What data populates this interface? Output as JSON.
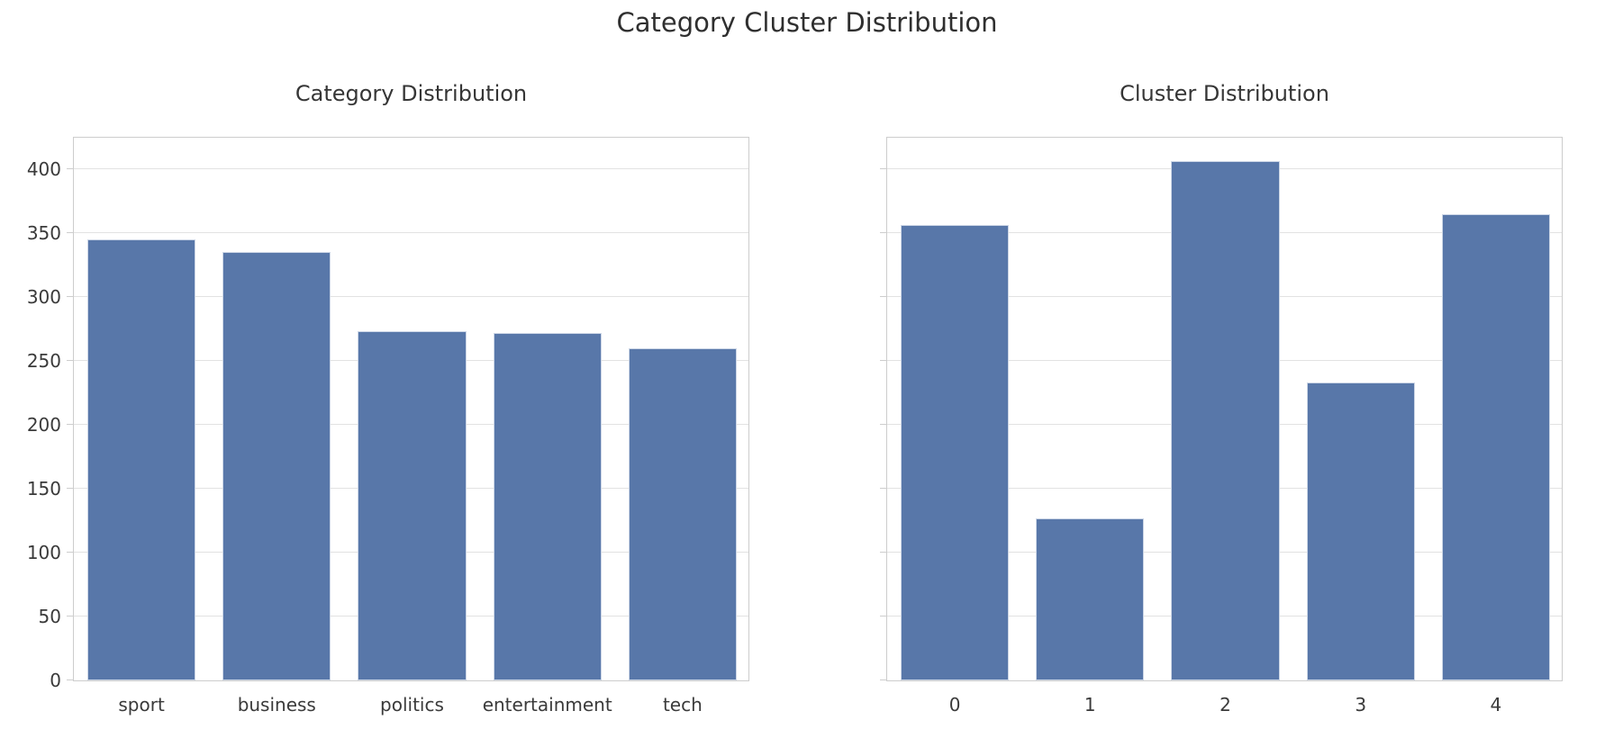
{
  "figure": {
    "suptitle": "Category Cluster Distribution",
    "background": "#ffffff",
    "text_color": "#3a3a3a",
    "bar_color": "#5877a9",
    "bar_edge_color": "#ccd6e6",
    "grid_color": "#e2e2e2",
    "spine_color": "#cdcdcd"
  },
  "chart_data": [
    {
      "type": "bar",
      "title": "Category Distribution",
      "categories": [
        "sport",
        "business",
        "politics",
        "entertainment",
        "tech"
      ],
      "values": [
        345,
        335,
        273,
        272,
        260
      ],
      "xlabel": "",
      "ylabel": "",
      "ylim": [
        0,
        426
      ],
      "yticks": [
        0,
        50,
        100,
        150,
        200,
        250,
        300,
        350,
        400
      ],
      "ytick_labels_visible": true,
      "grid": true,
      "legend": false
    },
    {
      "type": "bar",
      "title": "Cluster Distribution",
      "categories": [
        "0",
        "1",
        "2",
        "3",
        "4"
      ],
      "values": [
        356,
        127,
        406,
        233,
        365
      ],
      "xlabel": "",
      "ylabel": "",
      "ylim": [
        0,
        426
      ],
      "yticks": [
        0,
        50,
        100,
        150,
        200,
        250,
        300,
        350,
        400
      ],
      "ytick_labels_visible": false,
      "grid": true,
      "legend": false
    }
  ]
}
